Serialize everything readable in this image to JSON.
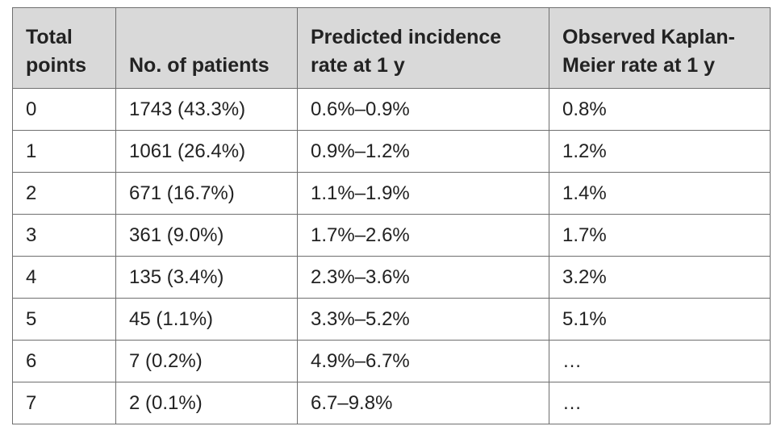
{
  "table": {
    "headers": [
      {
        "line1": "Total",
        "line2": "points"
      },
      {
        "line1": "",
        "line2": "No. of patients"
      },
      {
        "line1": "Predicted incidence",
        "line2": "rate at 1 y"
      },
      {
        "line1": "Observed Kaplan-",
        "line2": "Meier rate at 1 y"
      }
    ],
    "rows": [
      [
        "0",
        "1743 (43.3%)",
        "0.6%–0.9%",
        "0.8%"
      ],
      [
        "1",
        "1061 (26.4%)",
        "0.9%–1.2%",
        "1.2%"
      ],
      [
        "2",
        "671 (16.7%)",
        "1.1%–1.9%",
        "1.4%"
      ],
      [
        "3",
        "361 (9.0%)",
        "1.7%–2.6%",
        "1.7%"
      ],
      [
        "4",
        "135 (3.4%)",
        "2.3%–3.6%",
        "3.2%"
      ],
      [
        "5",
        "45 (1.1%)",
        "3.3%–5.2%",
        "5.1%"
      ],
      [
        "6",
        "7 (0.2%)",
        "4.9%–6.7%",
        "…"
      ],
      [
        "7",
        "2 (0.1%)",
        "6.7–9.8%",
        "…"
      ]
    ]
  },
  "colors": {
    "header_bg": "#d9d9d9",
    "border": "#6f6f6f",
    "text": "#222222"
  }
}
